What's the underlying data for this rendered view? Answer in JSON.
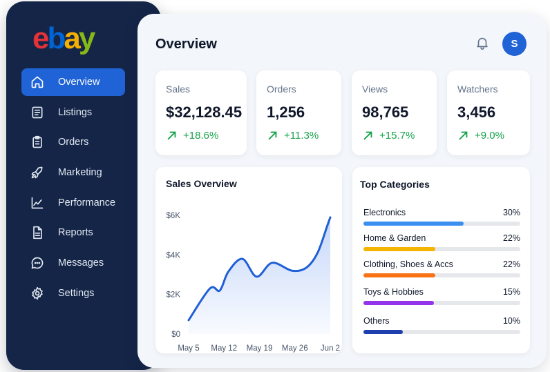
{
  "brand": {
    "letters": [
      {
        "char": "e",
        "color": "#e53238"
      },
      {
        "char": "b",
        "color": "#0064d2"
      },
      {
        "char": "a",
        "color": "#f5af02"
      },
      {
        "char": "y",
        "color": "#86b817"
      }
    ]
  },
  "sidebar": {
    "items": [
      {
        "label": "Overview",
        "icon": "home-icon",
        "active": true
      },
      {
        "label": "Listings",
        "icon": "list-icon",
        "active": false
      },
      {
        "label": "Orders",
        "icon": "clipboard-icon",
        "active": false
      },
      {
        "label": "Marketing",
        "icon": "rocket-icon",
        "active": false
      },
      {
        "label": "Performance",
        "icon": "trend-chart-icon",
        "active": false
      },
      {
        "label": "Reports",
        "icon": "document-icon",
        "active": false
      },
      {
        "label": "Messages",
        "icon": "chat-icon",
        "active": false
      },
      {
        "label": "Settings",
        "icon": "gear-icon",
        "active": false
      }
    ]
  },
  "header": {
    "title": "Overview",
    "bell_icon": "bell-icon",
    "avatar_initial": "S"
  },
  "stats": [
    {
      "label": "Sales",
      "value": "$32,128.45",
      "change": "+18.6%"
    },
    {
      "label": "Orders",
      "value": "1,256",
      "change": "+11.3%"
    },
    {
      "label": "Views",
      "value": "98,765",
      "change": "+15.7%"
    },
    {
      "label": "Watchers",
      "value": "3,456",
      "change": "+9.0%"
    }
  ],
  "sales_overview": {
    "title": "Sales Overview"
  },
  "chart_data": {
    "type": "area",
    "title": "Sales Overview",
    "xlabel": "",
    "ylabel": "",
    "x_ticks": [
      "May 5",
      "May 12",
      "May 19",
      "May 26",
      "Jun 2"
    ],
    "y_ticks": [
      "$0",
      "$2K",
      "$4K",
      "$6K"
    ],
    "ylim": [
      0,
      6000
    ],
    "grid": false,
    "series": [
      {
        "x": [
          0,
          0.15,
          0.22,
          0.28,
          0.38,
          0.48,
          0.59,
          0.73,
          0.83,
          0.91,
          0.98,
          1.0
        ],
        "y": [
          700,
          2300,
          2200,
          3150,
          3800,
          2900,
          3600,
          3200,
          3350,
          4100,
          5500,
          5900
        ]
      }
    ],
    "line_color": "#1f5fd6"
  },
  "top_categories": {
    "title": "Top Categories",
    "items": [
      {
        "name": "Electronics",
        "pct": "30%",
        "fill": 0.64,
        "color": "#3b8ff0"
      },
      {
        "name": "Home & Garden",
        "pct": "22%",
        "fill": 0.46,
        "color": "#f5b400"
      },
      {
        "name": "Clothing, Shoes & Accs",
        "pct": "22%",
        "fill": 0.46,
        "color": "#f97316"
      },
      {
        "name": "Toys & Hobbies",
        "pct": "15%",
        "fill": 0.45,
        "color": "#9333ea"
      },
      {
        "name": "Others",
        "pct": "10%",
        "fill": 0.25,
        "color": "#1e40af"
      }
    ]
  },
  "colors": {
    "sidebar_bg": "#142548",
    "accent": "#1f63d6",
    "positive": "#16a34a"
  }
}
